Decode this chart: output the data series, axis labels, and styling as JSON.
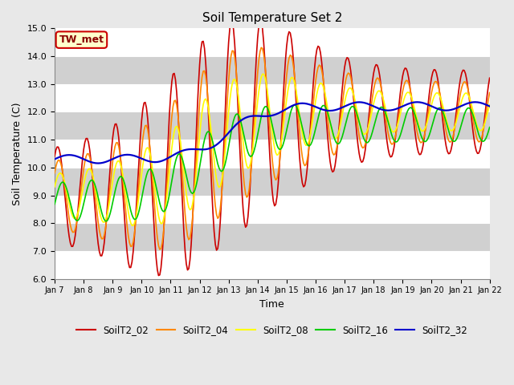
{
  "title": "Soil Temperature Set 2",
  "xlabel": "Time",
  "ylabel": "Soil Temperature (C)",
  "ylim": [
    6.0,
    15.0
  ],
  "yticks": [
    6.0,
    7.0,
    8.0,
    9.0,
    10.0,
    11.0,
    12.0,
    13.0,
    14.0,
    15.0
  ],
  "start_day": 7,
  "end_day": 22,
  "colors": {
    "SoilT2_02": "#cc0000",
    "SoilT2_04": "#ff8800",
    "SoilT2_08": "#ffff00",
    "SoilT2_16": "#00cc00",
    "SoilT2_32": "#0000cc"
  },
  "fig_bg": "#e8e8e8",
  "plot_bg": "#e8e8e8",
  "white_band": "#ffffff",
  "gray_band": "#d0d0d0",
  "annotation_text": "TW_met",
  "annotation_bg": "#ffffcc",
  "annotation_border": "#cc0000",
  "legend_labels": [
    "SoilT2_02",
    "SoilT2_04",
    "SoilT2_08",
    "SoilT2_16",
    "SoilT2_32"
  ]
}
